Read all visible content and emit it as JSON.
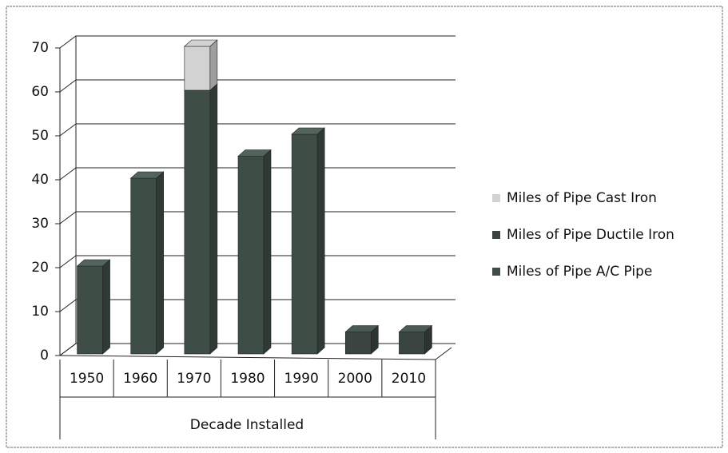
{
  "chart_data": {
    "type": "bar",
    "stacked": true,
    "categories": [
      "1950",
      "1960",
      "1970",
      "1980",
      "1990",
      "2000",
      "2010"
    ],
    "x_label": "Decade Installed",
    "series": [
      {
        "name": "Miles of Pipe A/C Pipe",
        "color": "#3f4d47",
        "values": [
          20,
          40,
          60,
          45,
          50,
          0,
          0
        ]
      },
      {
        "name": "Miles of Pipe Ductile Iron",
        "color": "#3a4541",
        "values": [
          0,
          0,
          0,
          0,
          0,
          5,
          5
        ]
      },
      {
        "name": "Miles of Pipe Cast Iron",
        "color": "#d2d2d2",
        "values": [
          0,
          0,
          10,
          0,
          0,
          0,
          0
        ]
      }
    ],
    "ylim": [
      0,
      70
    ],
    "yticks": [
      0,
      10,
      20,
      30,
      40,
      50,
      60,
      70
    ],
    "grid": true,
    "legend": "right"
  }
}
